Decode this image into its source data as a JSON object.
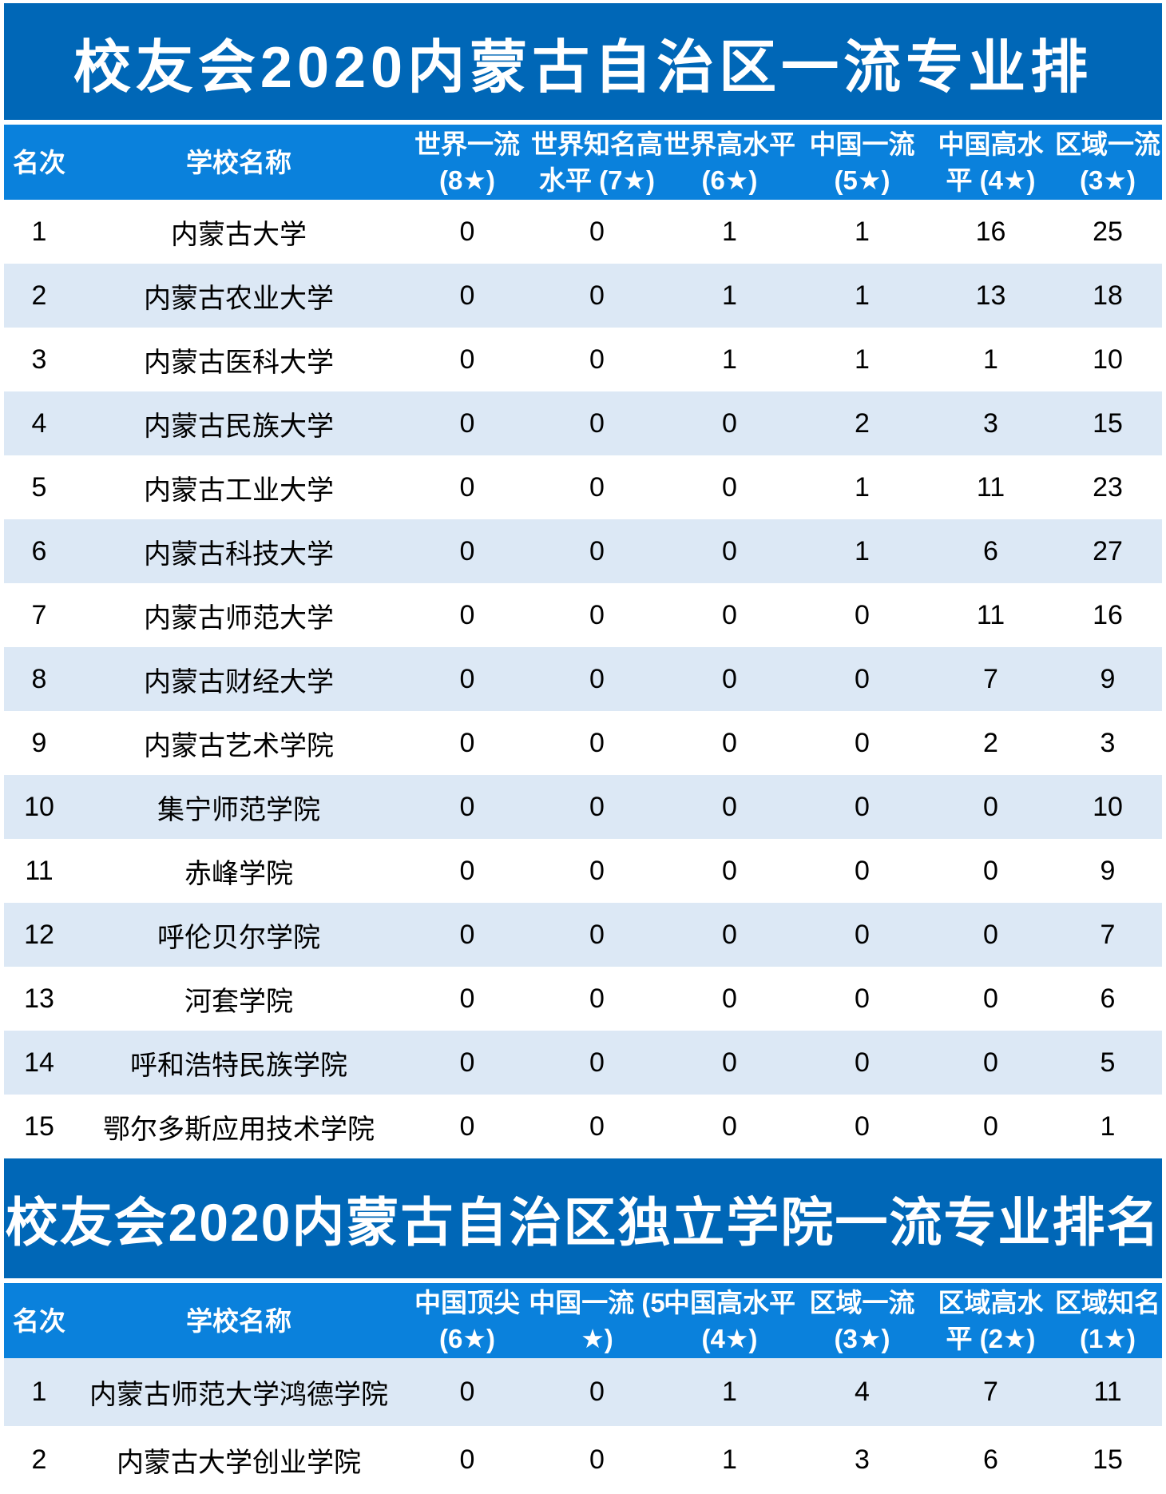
{
  "colors": {
    "banner_blue": "#0067b7",
    "header_blue": "#0a81dc",
    "stripe_blue": "#dce8f5",
    "text_black": "#000000",
    "text_white": "#ffffff"
  },
  "sections": [
    {
      "banner": "校友会2020内蒙古自治区一流专业排",
      "columns": [
        {
          "l1": "名次",
          "l2": ""
        },
        {
          "l1": "学校名称",
          "l2": ""
        },
        {
          "l1": "世界一流",
          "l2": "(8★)"
        },
        {
          "l1": "世界知名高",
          "l2": "水平 (7★)"
        },
        {
          "l1": "世界高水平",
          "l2": "(6★)"
        },
        {
          "l1": "中国一流",
          "l2": "(5★)"
        },
        {
          "l1": "中国高水",
          "l2": "平 (4★)"
        },
        {
          "l1": "区域一流",
          "l2": "(3★)"
        }
      ],
      "first_row_striped": false,
      "rows": [
        {
          "rank": "1",
          "school": "内蒙古大学",
          "values": [
            "0",
            "0",
            "1",
            "1",
            "16",
            "25"
          ]
        },
        {
          "rank": "2",
          "school": "内蒙古农业大学",
          "values": [
            "0",
            "0",
            "1",
            "1",
            "13",
            "18"
          ]
        },
        {
          "rank": "3",
          "school": "内蒙古医科大学",
          "values": [
            "0",
            "0",
            "1",
            "1",
            "1",
            "10"
          ]
        },
        {
          "rank": "4",
          "school": "内蒙古民族大学",
          "values": [
            "0",
            "0",
            "0",
            "2",
            "3",
            "15"
          ]
        },
        {
          "rank": "5",
          "school": "内蒙古工业大学",
          "values": [
            "0",
            "0",
            "0",
            "1",
            "11",
            "23"
          ]
        },
        {
          "rank": "6",
          "school": "内蒙古科技大学",
          "values": [
            "0",
            "0",
            "0",
            "1",
            "6",
            "27"
          ]
        },
        {
          "rank": "7",
          "school": "内蒙古师范大学",
          "values": [
            "0",
            "0",
            "0",
            "0",
            "11",
            "16"
          ]
        },
        {
          "rank": "8",
          "school": "内蒙古财经大学",
          "values": [
            "0",
            "0",
            "0",
            "0",
            "7",
            "9"
          ]
        },
        {
          "rank": "9",
          "school": "内蒙古艺术学院",
          "values": [
            "0",
            "0",
            "0",
            "0",
            "2",
            "3"
          ]
        },
        {
          "rank": "10",
          "school": "集宁师范学院",
          "values": [
            "0",
            "0",
            "0",
            "0",
            "0",
            "10"
          ]
        },
        {
          "rank": "11",
          "school": "赤峰学院",
          "values": [
            "0",
            "0",
            "0",
            "0",
            "0",
            "9"
          ]
        },
        {
          "rank": "12",
          "school": "呼伦贝尔学院",
          "values": [
            "0",
            "0",
            "0",
            "0",
            "0",
            "7"
          ]
        },
        {
          "rank": "13",
          "school": "河套学院",
          "values": [
            "0",
            "0",
            "0",
            "0",
            "0",
            "6"
          ]
        },
        {
          "rank": "14",
          "school": "呼和浩特民族学院",
          "values": [
            "0",
            "0",
            "0",
            "0",
            "0",
            "5"
          ]
        },
        {
          "rank": "15",
          "school": "鄂尔多斯应用技术学院",
          "values": [
            "0",
            "0",
            "0",
            "0",
            "0",
            "1"
          ]
        }
      ]
    },
    {
      "banner": "校友会2020内蒙古自治区独立学院一流专业排名",
      "columns": [
        {
          "l1": "名次",
          "l2": ""
        },
        {
          "l1": "学校名称",
          "l2": ""
        },
        {
          "l1": "中国顶尖",
          "l2": "(6★)"
        },
        {
          "l1": "中国一流 (5",
          "l2": "★)"
        },
        {
          "l1": "中国高水平",
          "l2": "(4★)"
        },
        {
          "l1": "区域一流",
          "l2": "(3★)"
        },
        {
          "l1": "区域高水",
          "l2": "平 (2★)"
        },
        {
          "l1": "区域知名",
          "l2": "(1★)"
        }
      ],
      "first_row_striped": true,
      "rows": [
        {
          "rank": "1",
          "school": "内蒙古师范大学鸿德学院",
          "values": [
            "0",
            "0",
            "1",
            "4",
            "7",
            "11"
          ]
        },
        {
          "rank": "2",
          "school": "内蒙古大学创业学院",
          "values": [
            "0",
            "0",
            "1",
            "3",
            "6",
            "15"
          ]
        }
      ]
    }
  ]
}
